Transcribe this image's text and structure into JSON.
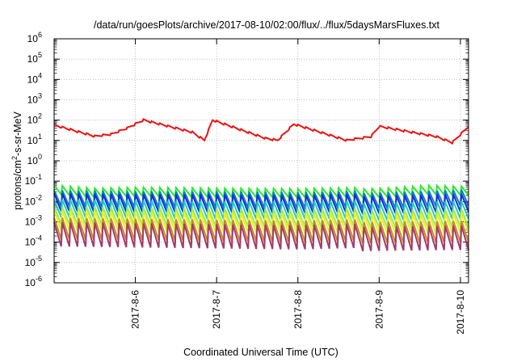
{
  "chart_data": {
    "type": "line",
    "title": "/data/run/goesPlots/archive/2017-08-10/02:00/flux/../flux/5daysMarsFluxes.txt",
    "xlabel": "Coordinated Universal Time (UTC)",
    "ylabel_parts": [
      "protons/cm",
      "2",
      "-s-sr-MeV"
    ],
    "yscale": "log",
    "ylim_exp": [
      -6,
      6
    ],
    "ytick_labels": [
      {
        "base": "10",
        "exp": "-6"
      },
      {
        "base": "10",
        "exp": "-5"
      },
      {
        "base": "10",
        "exp": "-4"
      },
      {
        "base": "10",
        "exp": "-3"
      },
      {
        "base": "10",
        "exp": "-2"
      },
      {
        "base": "10",
        "exp": "-1"
      },
      {
        "base": "10",
        "exp": "0"
      },
      {
        "base": "10",
        "exp": "1"
      },
      {
        "base": "10",
        "exp": "2"
      },
      {
        "base": "10",
        "exp": "3"
      },
      {
        "base": "10",
        "exp": "4"
      },
      {
        "base": "10",
        "exp": "5"
      },
      {
        "base": "10",
        "exp": "6"
      }
    ],
    "xlim_days": [
      5.0,
      10.1
    ],
    "xticks": [
      {
        "day": 6,
        "label": "2017-8-6"
      },
      {
        "day": 7,
        "label": "2017-8-7"
      },
      {
        "day": 8,
        "label": "2017-8-8"
      },
      {
        "day": 9,
        "label": "2017-8-9"
      },
      {
        "day": 10,
        "label": "2017-8-10"
      }
    ],
    "grid": true,
    "series": [
      {
        "color": "#ee1111",
        "stroke": 2.0,
        "type": "sawtooth",
        "period": 0.1,
        "decay": 0.1,
        "envelope": [
          [
            5.0,
            1.75
          ],
          [
            5.5,
            1.2
          ],
          [
            5.7,
            1.3
          ],
          [
            5.9,
            1.6
          ],
          [
            6.1,
            2.0
          ],
          [
            6.7,
            1.4
          ],
          [
            6.85,
            1.0
          ],
          [
            6.95,
            2.0
          ],
          [
            7.6,
            1.1
          ],
          [
            7.75,
            1.0
          ],
          [
            7.95,
            1.8
          ],
          [
            8.6,
            1.0
          ],
          [
            8.9,
            1.2
          ],
          [
            9.0,
            1.7
          ],
          [
            9.7,
            1.2
          ],
          [
            9.9,
            0.9
          ],
          [
            10.1,
            1.7
          ]
        ]
      },
      {
        "color": "#22ee22",
        "stroke": 2.0,
        "type": "sawtooth",
        "period": 0.1,
        "decay": 0.5,
        "envelope": [
          [
            5.0,
            -1.45
          ],
          [
            5.5,
            -1.6
          ],
          [
            6.0,
            -1.55
          ],
          [
            7.0,
            -1.6
          ],
          [
            8.0,
            -1.62
          ],
          [
            9.0,
            -1.55
          ],
          [
            9.6,
            -1.4
          ],
          [
            10.1,
            -1.45
          ]
        ]
      },
      {
        "color": "#1177dd",
        "stroke": 2.0,
        "type": "sawtooth",
        "period": 0.1,
        "decay": 0.9,
        "envelope": [
          [
            5.0,
            -1.9
          ],
          [
            6.0,
            -1.95
          ],
          [
            7.0,
            -1.95
          ],
          [
            8.0,
            -2.0
          ],
          [
            9.0,
            -1.9
          ],
          [
            10.1,
            -1.75
          ]
        ]
      },
      {
        "color": "#1133cc",
        "stroke": 2.0,
        "type": "sawtooth",
        "period": 0.1,
        "decay": 1.0,
        "envelope": [
          [
            5.0,
            -2.1
          ],
          [
            6.0,
            -2.15
          ],
          [
            7.0,
            -2.15
          ],
          [
            8.0,
            -2.2
          ],
          [
            9.0,
            -2.1
          ],
          [
            10.1,
            -2.0
          ]
        ]
      },
      {
        "color": "#22ccbb",
        "stroke": 2.0,
        "type": "sawtooth",
        "period": 0.1,
        "decay": 1.0,
        "envelope": [
          [
            5.0,
            -2.4
          ],
          [
            6.0,
            -2.45
          ],
          [
            7.0,
            -2.5
          ],
          [
            8.0,
            -2.5
          ],
          [
            9.0,
            -2.45
          ],
          [
            10.1,
            -2.35
          ]
        ]
      },
      {
        "color": "#99ee55",
        "stroke": 2.0,
        "type": "sawtooth",
        "period": 0.1,
        "decay": 1.0,
        "envelope": [
          [
            5.0,
            -2.75
          ],
          [
            6.0,
            -2.8
          ],
          [
            7.0,
            -2.85
          ],
          [
            8.0,
            -2.9
          ],
          [
            9.0,
            -2.8
          ],
          [
            10.1,
            -2.75
          ]
        ]
      },
      {
        "color": "#eeee22",
        "stroke": 2.0,
        "type": "sawtooth",
        "period": 0.1,
        "decay": 1.1,
        "envelope": [
          [
            5.0,
            -3.0
          ],
          [
            6.0,
            -3.05
          ],
          [
            7.0,
            -3.1
          ],
          [
            8.0,
            -3.15
          ],
          [
            9.0,
            -3.05
          ],
          [
            10.1,
            -3.0
          ]
        ]
      },
      {
        "color": "#cc8822",
        "stroke": 2.0,
        "type": "sawtooth",
        "period": 0.1,
        "decay": 1.2,
        "envelope": [
          [
            5.0,
            -3.4
          ],
          [
            6.0,
            -3.45
          ],
          [
            7.0,
            -3.5
          ],
          [
            8.0,
            -3.55
          ],
          [
            9.0,
            -3.45
          ],
          [
            10.1,
            -3.4
          ]
        ]
      },
      {
        "color": "#a03c6e",
        "stroke": 2.0,
        "type": "sawtooth",
        "period": 0.1,
        "decay": 1.35,
        "envelope": [
          [
            5.0,
            -3.7
          ],
          [
            6.0,
            -3.75
          ],
          [
            7.0,
            -3.8
          ],
          [
            8.0,
            -3.85
          ],
          [
            9.0,
            -3.75
          ],
          [
            10.1,
            -3.7
          ]
        ]
      }
    ]
  }
}
